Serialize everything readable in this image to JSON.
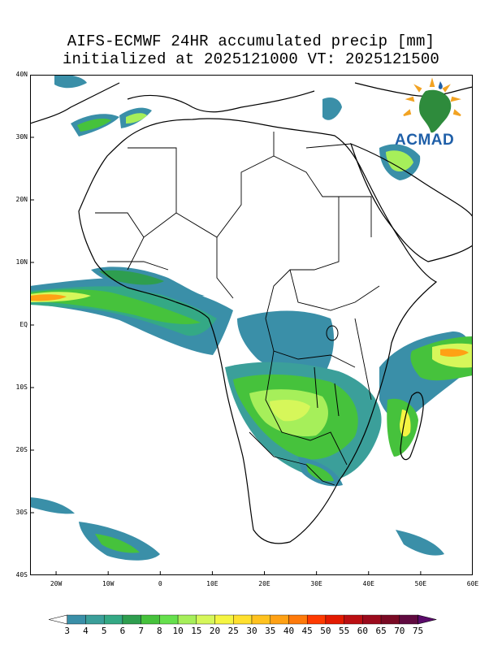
{
  "title": {
    "line1": "AIFS-ECMWF 24HR accumulated precip [mm]",
    "line2": "initialized at 2025121000 VT: 2025121500"
  },
  "map": {
    "lon_range": [
      -25,
      60
    ],
    "lat_range": [
      -40,
      40
    ],
    "lat_ticks": [
      {
        "label": "40N",
        "lat": 40
      },
      {
        "label": "30N",
        "lat": 30
      },
      {
        "label": "20N",
        "lat": 20
      },
      {
        "label": "10N",
        "lat": 10
      },
      {
        "label": "EQ",
        "lat": 0
      },
      {
        "label": "10S",
        "lat": -10
      },
      {
        "label": "20S",
        "lat": -20
      },
      {
        "label": "30S",
        "lat": -30
      },
      {
        "label": "40S",
        "lat": -40
      }
    ],
    "lon_ticks": [
      {
        "label": "20W",
        "lon": -20
      },
      {
        "label": "10W",
        "lon": -10
      },
      {
        "label": "0",
        "lon": 0
      },
      {
        "label": "10E",
        "lon": 10
      },
      {
        "label": "20E",
        "lon": 20
      },
      {
        "label": "30E",
        "lon": 30
      },
      {
        "label": "40E",
        "lon": 40
      },
      {
        "label": "50E",
        "lon": 50
      },
      {
        "label": "60E",
        "lon": 60
      }
    ]
  },
  "logo": {
    "text": "ACMAD",
    "icon": "acmad-africa-sun-logo-icon"
  },
  "colorbar": {
    "labels": [
      "3",
      "4",
      "5",
      "6",
      "7",
      "8",
      "10",
      "15",
      "20",
      "25",
      "30",
      "35",
      "40",
      "45",
      "50",
      "55",
      "60",
      "65",
      "70",
      "75"
    ],
    "colors": [
      "#ffffff",
      "#3a8fa8",
      "#3b9f9a",
      "#34a985",
      "#2e9e4f",
      "#46c23c",
      "#66e04d",
      "#a6ef5a",
      "#d6f75a",
      "#f5f542",
      "#ffe02e",
      "#ffc21f",
      "#ffa114",
      "#ff7a0a",
      "#ff3a00",
      "#e31a00",
      "#bb0f12",
      "#9b0a1c",
      "#7a0a24",
      "#600a40",
      "#5a0a6a"
    ]
  },
  "legend_colors": {
    "ocean": "#ffffff",
    "boundary": "#000000"
  }
}
